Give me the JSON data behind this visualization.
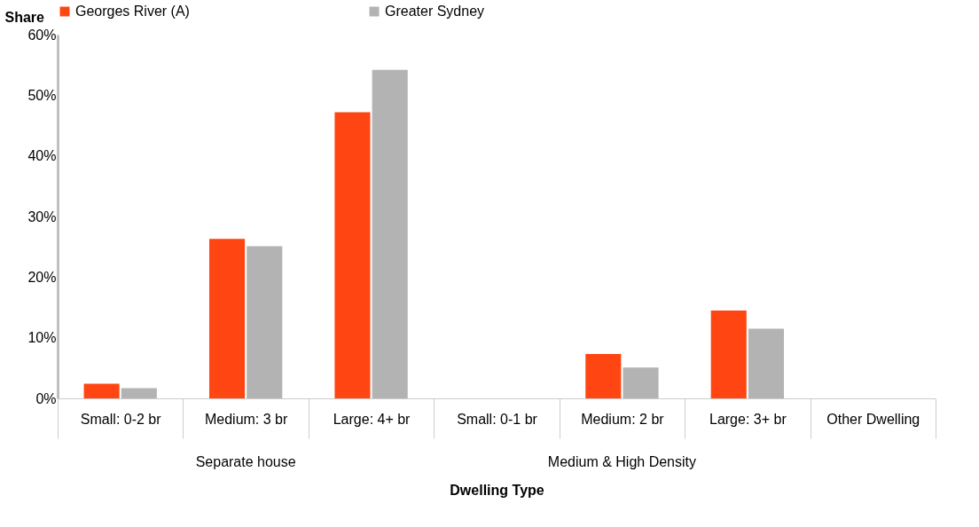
{
  "chart_data": {
    "type": "bar",
    "xlabel": "Dwelling Type",
    "ylabel": "Share",
    "categories": [
      "Small: 0-2 br",
      "Medium: 3 br",
      "Large: 4+ br",
      "Small: 0-1 br",
      "Medium: 2 br",
      "Large: 3+ br",
      "Other Dwelling"
    ],
    "series": [
      {
        "name": "Georges River (A)",
        "color": "#ff4612",
        "values": [
          2.4,
          26.3,
          47.2,
          0,
          7.3,
          14.5,
          0
        ]
      },
      {
        "name": "Greater Sydney",
        "color": "#b3b3b3",
        "values": [
          1.7,
          25.1,
          54.2,
          0,
          5.1,
          11.5,
          0
        ]
      }
    ],
    "ylim": [
      0,
      60
    ],
    "yticks": [
      {
        "value": 0,
        "label": "0%"
      },
      {
        "value": 10,
        "label": "10%"
      },
      {
        "value": 20,
        "label": "20%"
      },
      {
        "value": 30,
        "label": "30%"
      },
      {
        "value": 40,
        "label": "40%"
      },
      {
        "value": 50,
        "label": "50%"
      },
      {
        "value": 60,
        "label": "60%"
      }
    ],
    "annotations": [
      "Separate house",
      "Medium & High Density"
    ],
    "legend": "top",
    "grid": false
  }
}
